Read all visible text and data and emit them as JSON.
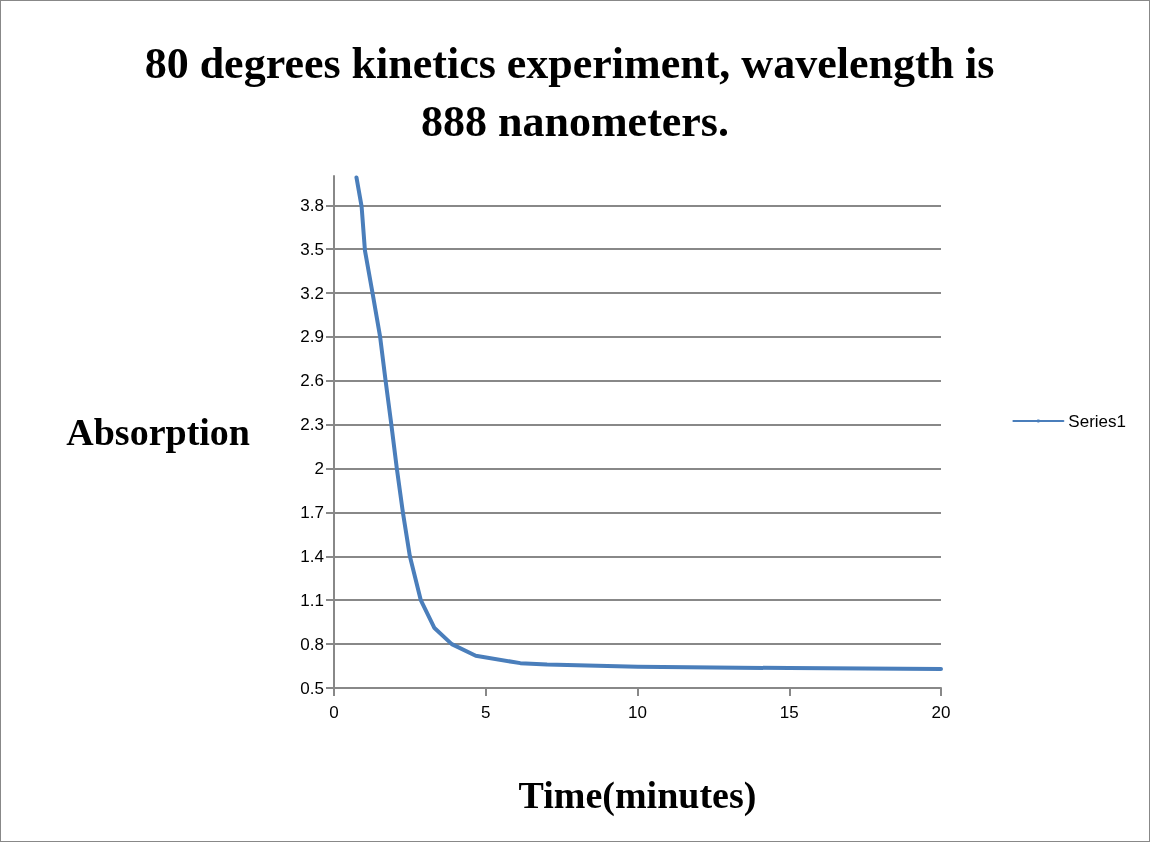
{
  "chart_data": {
    "type": "line",
    "title": "80 degrees kinetics experiment, wavelength is 888 nanometers.",
    "xlabel": "Time(minutes)",
    "ylabel": "Absorption",
    "x": [
      0.74,
      0.91,
      1.02,
      1.27,
      1.52,
      1.7,
      1.89,
      2.07,
      2.27,
      2.5,
      2.86,
      3.31,
      3.88,
      4.67,
      6.14,
      7.02,
      10,
      15,
      20
    ],
    "series": [
      {
        "name": "Series1",
        "color": "#4a7ebb",
        "values": [
          3.99,
          3.79,
          3.49,
          3.2,
          2.9,
          2.6,
          2.3,
          2.0,
          1.7,
          1.4,
          1.1,
          0.91,
          0.8,
          0.72,
          0.67,
          0.66,
          0.645,
          0.636,
          0.63
        ]
      }
    ],
    "xlim": [
      0,
      20
    ],
    "xticks": [
      0,
      5,
      10,
      15,
      20
    ],
    "ylim": [
      0.5,
      4.0
    ],
    "yticks": [
      0.5,
      0.8,
      1.1,
      1.4,
      1.7,
      2,
      2.3,
      2.6,
      2.9,
      3.2,
      3.5,
      3.8
    ],
    "grid": "y",
    "legend": "right",
    "marker": "none",
    "line_style": "solid"
  }
}
